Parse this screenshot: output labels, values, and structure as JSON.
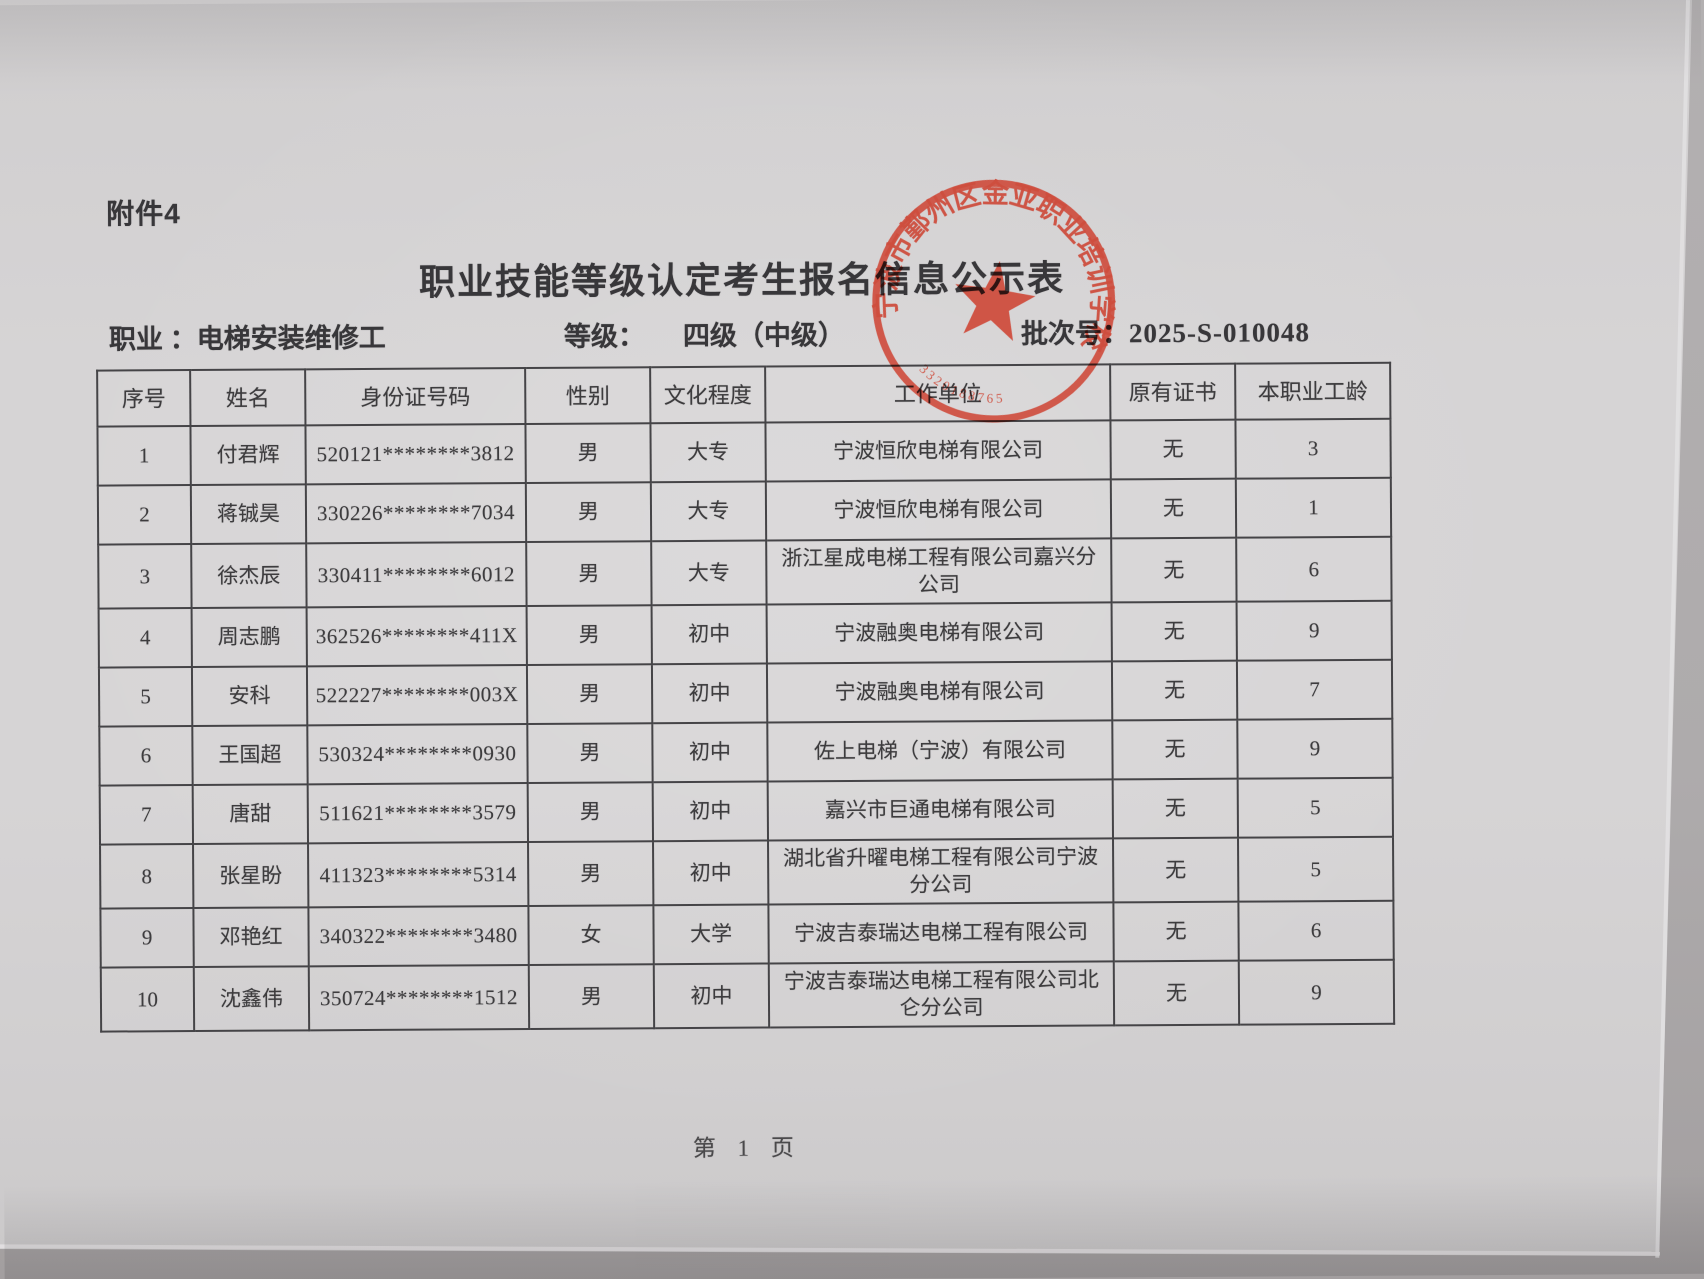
{
  "document": {
    "attachment_label": "附件4",
    "title": "职业技能等级认定考生报名信息公示表",
    "meta": {
      "occupation_label": "职业 ：",
      "occupation_value": "电梯安装维修工",
      "level_label": "等级：",
      "level_value": "四级（中级）",
      "batch_label": "批次号：",
      "batch_value": "2025-S-010048"
    },
    "footer_page": "第 1 页"
  },
  "stamp": {
    "ring_text": "宁波市鄞州区金亚职业培训学校",
    "code_digits": "3320188765",
    "color": "#cd3a28"
  },
  "table": {
    "headers": [
      "序号",
      "姓名",
      "身份证号码",
      "性别",
      "文化程度",
      "工作单位",
      "原有证书",
      "本职业工龄"
    ],
    "rows": [
      [
        "1",
        "付君辉",
        "520121********3812",
        "男",
        "大专",
        "宁波恒欣电梯有限公司",
        "无",
        "3"
      ],
      [
        "2",
        "蒋铖昊",
        "330226********7034",
        "男",
        "大专",
        "宁波恒欣电梯有限公司",
        "无",
        "1"
      ],
      [
        "3",
        "徐杰辰",
        "330411********6012",
        "男",
        "大专",
        "浙江星成电梯工程有限公司嘉兴分公司",
        "无",
        "6"
      ],
      [
        "4",
        "周志鹏",
        "362526********411X",
        "男",
        "初中",
        "宁波融奥电梯有限公司",
        "无",
        "9"
      ],
      [
        "5",
        "安科",
        "522227********003X",
        "男",
        "初中",
        "宁波融奥电梯有限公司",
        "无",
        "7"
      ],
      [
        "6",
        "王国超",
        "530324********0930",
        "男",
        "初中",
        "佐上电梯（宁波）有限公司",
        "无",
        "9"
      ],
      [
        "7",
        "唐甜",
        "511621********3579",
        "男",
        "初中",
        "嘉兴市巨通电梯有限公司",
        "无",
        "5"
      ],
      [
        "8",
        "张星盼",
        "411323********5314",
        "男",
        "初中",
        "湖北省升曜电梯工程有限公司宁波分公司",
        "无",
        "5"
      ],
      [
        "9",
        "邓艳红",
        "340322********3480",
        "女",
        "大学",
        "宁波吉泰瑞达电梯工程有限公司",
        "无",
        "6"
      ],
      [
        "10",
        "沈鑫伟",
        "350724********1512",
        "男",
        "初中",
        "宁波吉泰瑞达电梯工程有限公司北仑分公司",
        "无",
        "9"
      ]
    ]
  }
}
